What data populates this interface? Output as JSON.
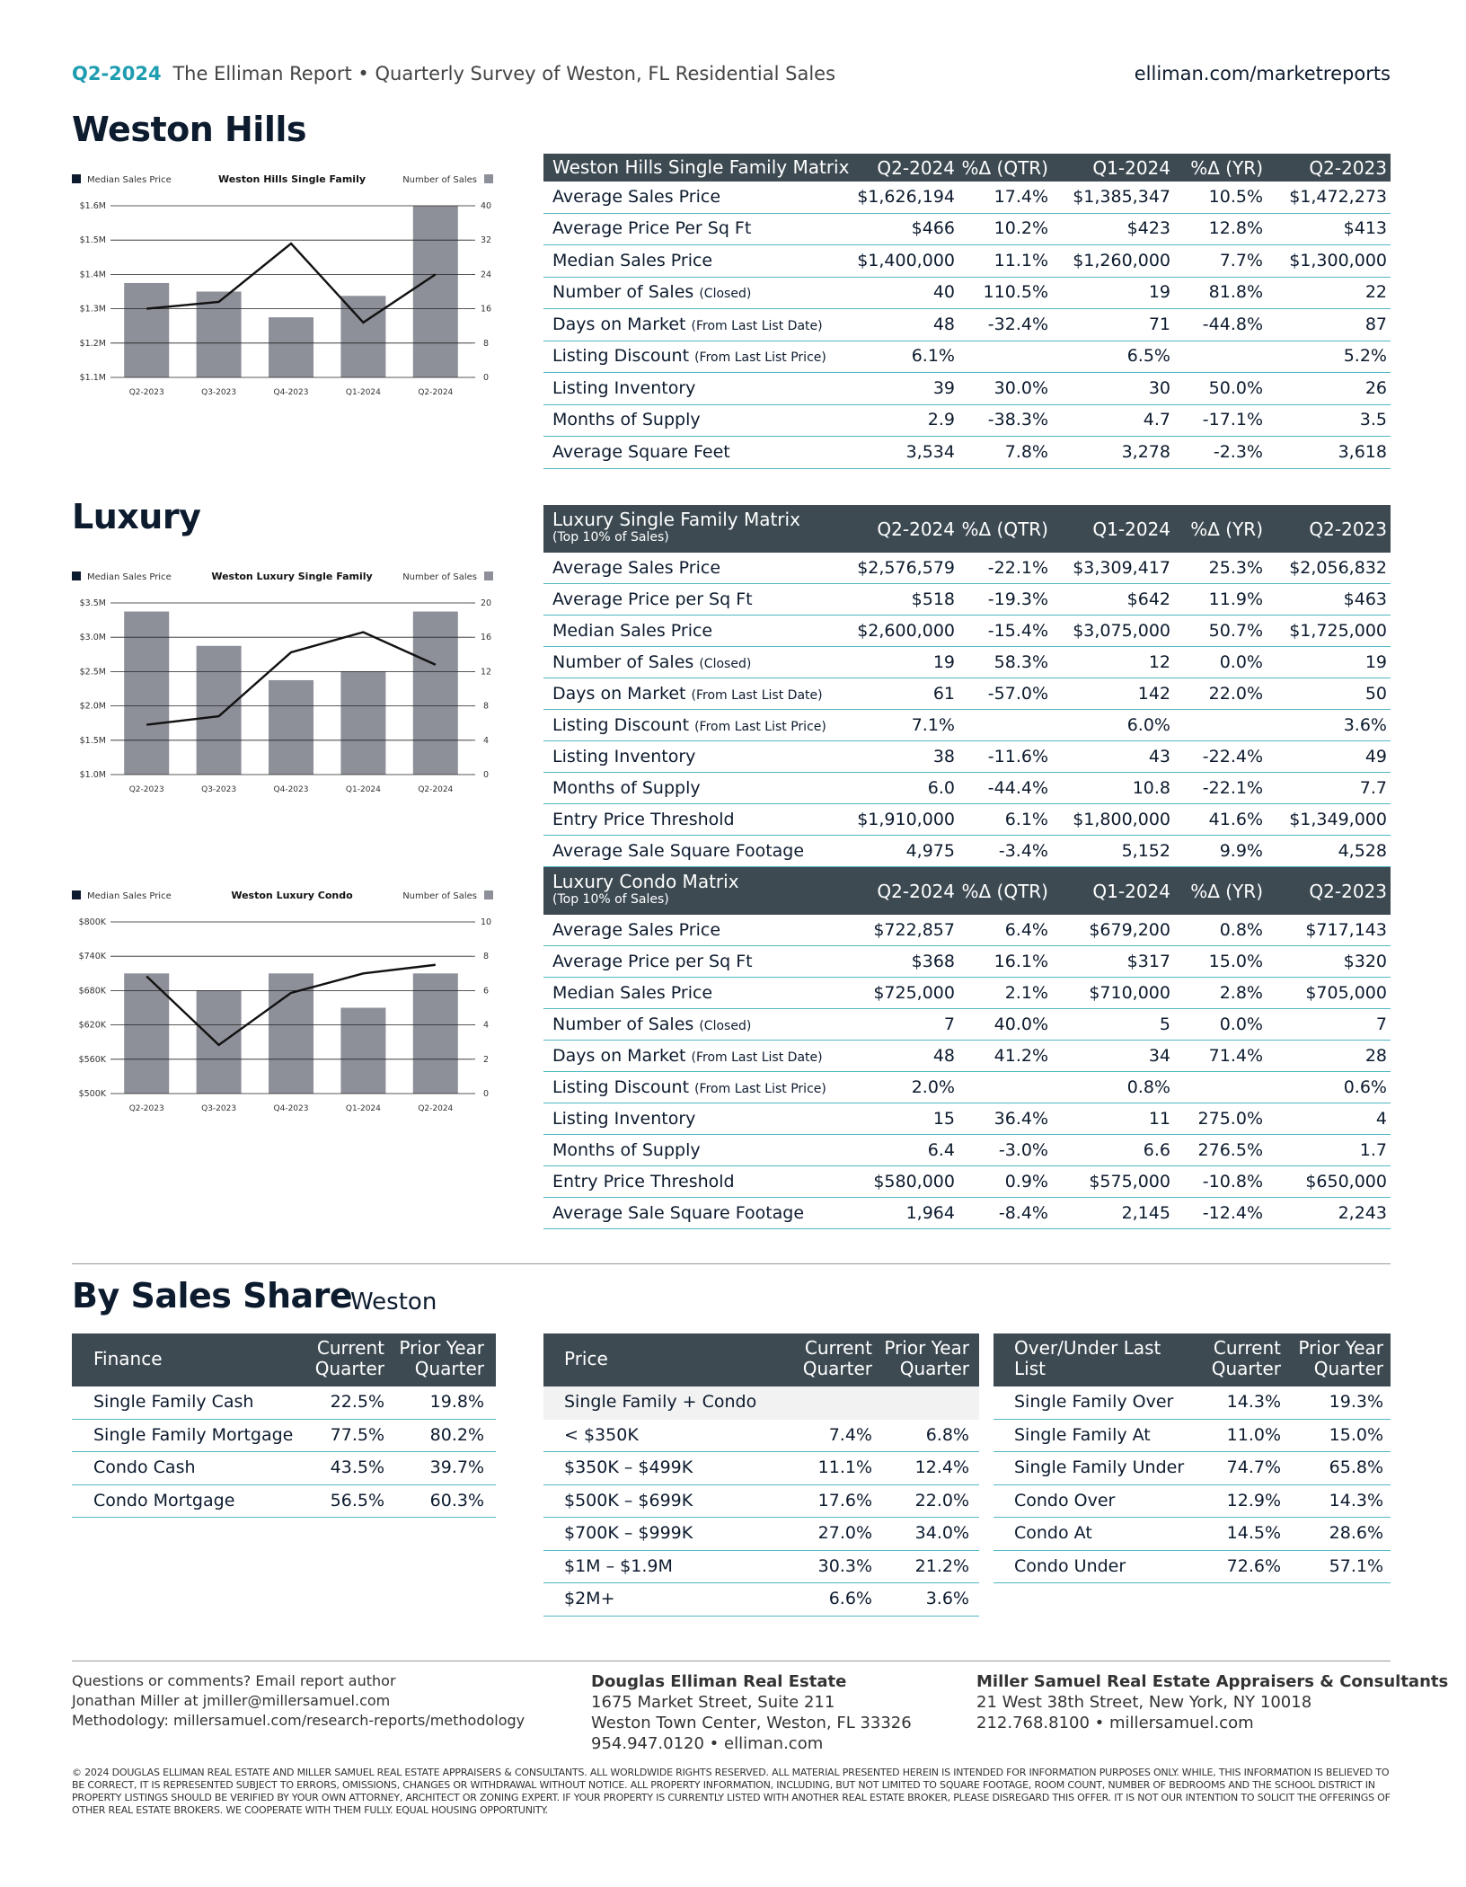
{
  "header": {
    "period": "Q2-2024",
    "title": "The Elliman Report • Quarterly Survey of Weston, FL Residential Sales",
    "url": "elliman.com/marketreports"
  },
  "sections": {
    "weston_hills": "Weston Hills",
    "luxury": "Luxury",
    "share": "By Sales Share",
    "share_sub": "Weston"
  },
  "matrices": [
    {
      "title": "Weston Hills Single Family  Matrix",
      "columns": [
        "Q2-2024",
        "%Δ (QTR)",
        "Q1-2024",
        "%Δ (YR)",
        "Q2-2023"
      ],
      "rows": [
        {
          "label": "Average Sales Price",
          "cells": [
            "$1,626,194",
            "17.4%",
            "$1,385,347",
            "10.5%",
            "$1,472,273"
          ]
        },
        {
          "label": "Average Price Per Sq Ft",
          "cells": [
            "$466",
            "10.2%",
            "$423",
            "12.8%",
            "$413"
          ]
        },
        {
          "label": "Median Sales Price",
          "cells": [
            "$1,400,000",
            "11.1%",
            "$1,260,000",
            "7.7%",
            "$1,300,000"
          ]
        },
        {
          "label": "Number of Sales",
          "note": "(Closed)",
          "cells": [
            "40",
            "110.5%",
            "19",
            "81.8%",
            "22"
          ]
        },
        {
          "label": "Days on Market",
          "note": "(From Last List Date)",
          "cells": [
            "48",
            "-32.4%",
            "71",
            "-44.8%",
            "87"
          ]
        },
        {
          "label": "Listing Discount",
          "note": "(From Last List Price)",
          "cells": [
            "6.1%",
            null,
            "6.5%",
            null,
            "5.2%"
          ]
        },
        {
          "label": "Listing Inventory",
          "cells": [
            "39",
            "30.0%",
            "30",
            "50.0%",
            "26"
          ]
        },
        {
          "label": "Months of Supply",
          "cells": [
            "2.9",
            "-38.3%",
            "4.7",
            "-17.1%",
            "3.5"
          ]
        },
        {
          "label": "Average Square Feet",
          "cells": [
            "3,534",
            "7.8%",
            "3,278",
            "-2.3%",
            "3,618"
          ]
        }
      ]
    },
    {
      "title": "Luxury Single Family Matrix",
      "subtitle": "(Top 10% of Sales)",
      "columns": [
        "Q2-2024",
        "%Δ (QTR)",
        "Q1-2024",
        "%Δ (YR)",
        "Q2-2023"
      ],
      "rows": [
        {
          "label": "Average Sales Price",
          "cells": [
            "$2,576,579",
            "-22.1%",
            "$3,309,417",
            "25.3%",
            "$2,056,832"
          ]
        },
        {
          "label": "Average Price per Sq Ft",
          "cells": [
            "$518",
            "-19.3%",
            "$642",
            "11.9%",
            "$463"
          ]
        },
        {
          "label": "Median Sales Price",
          "cells": [
            "$2,600,000",
            "-15.4%",
            "$3,075,000",
            "50.7%",
            "$1,725,000"
          ]
        },
        {
          "label": "Number of Sales",
          "note": "(Closed)",
          "cells": [
            "19",
            "58.3%",
            "12",
            "0.0%",
            "19"
          ]
        },
        {
          "label": "Days on Market",
          "note": "(From Last List Date)",
          "cells": [
            "61",
            "-57.0%",
            "142",
            "22.0%",
            "50"
          ]
        },
        {
          "label": "Listing Discount",
          "note": "(From Last List Price)",
          "cells": [
            "7.1%",
            null,
            "6.0%",
            null,
            "3.6%"
          ]
        },
        {
          "label": "Listing Inventory",
          "cells": [
            "38",
            "-11.6%",
            "43",
            "-22.4%",
            "49"
          ]
        },
        {
          "label": "Months of Supply",
          "cells": [
            "6.0",
            "-44.4%",
            "10.8",
            "-22.1%",
            "7.7"
          ]
        },
        {
          "label": "Entry Price Threshold",
          "cells": [
            "$1,910,000",
            "6.1%",
            "$1,800,000",
            "41.6%",
            "$1,349,000"
          ]
        },
        {
          "label": "Average Sale Square Footage",
          "cells": [
            "4,975",
            "-3.4%",
            "5,152",
            "9.9%",
            "4,528"
          ]
        }
      ]
    },
    {
      "title": "Luxury Condo Matrix",
      "subtitle": "(Top 10% of Sales)",
      "columns": [
        "Q2-2024",
        "%Δ (QTR)",
        "Q1-2024",
        "%Δ (YR)",
        "Q2-2023"
      ],
      "rows": [
        {
          "label": "Average Sales Price",
          "cells": [
            "$722,857",
            "6.4%",
            "$679,200",
            "0.8%",
            "$717,143"
          ]
        },
        {
          "label": "Average Price per Sq Ft",
          "cells": [
            "$368",
            "16.1%",
            "$317",
            "15.0%",
            "$320"
          ]
        },
        {
          "label": "Median Sales Price",
          "cells": [
            "$725,000",
            "2.1%",
            "$710,000",
            "2.8%",
            "$705,000"
          ]
        },
        {
          "label": "Number of Sales",
          "note": "(Closed)",
          "cells": [
            "7",
            "40.0%",
            "5",
            "0.0%",
            "7"
          ]
        },
        {
          "label": "Days on Market",
          "note": "(From Last List Date)",
          "cells": [
            "48",
            "41.2%",
            "34",
            "71.4%",
            "28"
          ]
        },
        {
          "label": "Listing Discount",
          "note": "(From Last List Price)",
          "cells": [
            "2.0%",
            null,
            "0.8%",
            null,
            "0.6%"
          ]
        },
        {
          "label": "Listing Inventory",
          "cells": [
            "15",
            "36.4%",
            "11",
            "275.0%",
            "4"
          ]
        },
        {
          "label": "Months of Supply",
          "cells": [
            "6.4",
            "-3.0%",
            "6.6",
            "276.5%",
            "1.7"
          ]
        },
        {
          "label": "Entry Price Threshold",
          "cells": [
            "$580,000",
            "0.9%",
            "$575,000",
            "-10.8%",
            "$650,000"
          ]
        },
        {
          "label": "Average Sale Square Footage",
          "cells": [
            "1,964",
            "-8.4%",
            "2,145",
            "-12.4%",
            "2,243"
          ]
        }
      ]
    }
  ],
  "chart_data": [
    {
      "type": "combo",
      "title": "Weston Hills Single Family",
      "categories": [
        "Q2-2023",
        "Q3-2023",
        "Q4-2023",
        "Q1-2024",
        "Q2-2024"
      ],
      "series": [
        {
          "name": "Median Sales Price",
          "type": "line",
          "color": "#111111",
          "values": [
            1300000,
            1320000,
            1490000,
            1260000,
            1400000
          ]
        },
        {
          "name": "Number of Sales",
          "type": "bar",
          "axis": "y2",
          "color": "#8e9099",
          "values": [
            22,
            20,
            14,
            19,
            40
          ]
        }
      ],
      "ylim": [
        1100000,
        1600000
      ],
      "yticks": [
        {
          "value": 1100000,
          "label": "$1.1M"
        },
        {
          "value": 1200000,
          "label": "$1.2M"
        },
        {
          "value": 1300000,
          "label": "$1.3M"
        },
        {
          "value": 1400000,
          "label": "$1.4M"
        },
        {
          "value": 1500000,
          "label": "$1.5M"
        },
        {
          "value": 1600000,
          "label": "$1.6M"
        }
      ],
      "y2lim": [
        0,
        40
      ],
      "y2ticks": [
        0,
        8,
        16,
        24,
        32,
        40
      ],
      "grid": true
    },
    {
      "type": "combo",
      "title": "Weston Luxury Single Family",
      "categories": [
        "Q2-2023",
        "Q3-2023",
        "Q4-2023",
        "Q1-2024",
        "Q2-2024"
      ],
      "series": [
        {
          "name": "Median Sales Price",
          "type": "line",
          "color": "#111111",
          "values": [
            1725000,
            1850000,
            2780000,
            3075000,
            2600000
          ]
        },
        {
          "name": "Number of Sales",
          "type": "bar",
          "axis": "y2",
          "color": "#8e9099",
          "values": [
            19,
            15,
            11,
            12,
            19
          ]
        }
      ],
      "ylim": [
        1000000,
        3500000
      ],
      "yticks": [
        {
          "value": 1000000,
          "label": "$1.0M"
        },
        {
          "value": 1500000,
          "label": "$1.5M"
        },
        {
          "value": 2000000,
          "label": "$2.0M"
        },
        {
          "value": 2500000,
          "label": "$2.5M"
        },
        {
          "value": 3000000,
          "label": "$3.0M"
        },
        {
          "value": 3500000,
          "label": "$3.5M"
        }
      ],
      "y2lim": [
        0,
        20
      ],
      "y2ticks": [
        0,
        4,
        8,
        12,
        16,
        20
      ],
      "grid": true
    },
    {
      "type": "combo",
      "title": "Weston Luxury Condo",
      "categories": [
        "Q2-2023",
        "Q3-2023",
        "Q4-2023",
        "Q1-2024",
        "Q2-2024"
      ],
      "series": [
        {
          "name": "Median Sales Price",
          "type": "line",
          "color": "#111111",
          "values": [
            705000,
            585000,
            676000,
            710000,
            725000
          ]
        },
        {
          "name": "Number of Sales",
          "type": "bar",
          "axis": "y2",
          "color": "#8e9099",
          "values": [
            7,
            6,
            7,
            5,
            7
          ]
        }
      ],
      "ylim": [
        500000,
        800000
      ],
      "yticks": [
        {
          "value": 500000,
          "label": "$500K"
        },
        {
          "value": 560000,
          "label": "$560K"
        },
        {
          "value": 620000,
          "label": "$620K"
        },
        {
          "value": 680000,
          "label": "$680K"
        },
        {
          "value": 740000,
          "label": "$740K"
        },
        {
          "value": 800000,
          "label": "$800K"
        }
      ],
      "y2lim": [
        0,
        10
      ],
      "y2ticks": [
        0,
        2,
        4,
        6,
        8,
        10
      ],
      "grid": true
    }
  ],
  "share_tables": [
    {
      "header": [
        "Finance",
        "Current Quarter",
        "Prior Year Quarter"
      ],
      "rows": [
        [
          "Single Family Cash",
          "22.5%",
          "19.8%"
        ],
        [
          "Single Family Mortgage",
          "77.5%",
          "80.2%"
        ],
        [
          "Condo Cash",
          "43.5%",
          "39.7%"
        ],
        [
          "Condo Mortgage",
          "56.5%",
          "60.3%"
        ]
      ]
    },
    {
      "header": [
        "Price",
        "Current Quarter",
        "Prior Year Quarter"
      ],
      "group": "Single Family + Condo",
      "rows": [
        [
          "< $350K",
          "7.4%",
          "6.8%"
        ],
        [
          "$350K – $499K",
          "11.1%",
          "12.4%"
        ],
        [
          "$500K – $699K",
          "17.6%",
          "22.0%"
        ],
        [
          "$700K – $999K",
          "27.0%",
          "34.0%"
        ],
        [
          "$1M – $1.9M",
          "30.3%",
          "21.2%"
        ],
        [
          "$2M+",
          "6.6%",
          "3.6%"
        ]
      ]
    },
    {
      "header": [
        "Over/Under Last List",
        "Current Quarter",
        "Prior Year Quarter"
      ],
      "rows": [
        [
          "Single Family Over",
          "14.3%",
          "19.3%"
        ],
        [
          "Single Family At",
          "11.0%",
          "15.0%"
        ],
        [
          "Single Family Under",
          "74.7%",
          "65.8%"
        ],
        [
          "Condo Over",
          "12.9%",
          "14.3%"
        ],
        [
          "Condo At",
          "14.5%",
          "28.6%"
        ],
        [
          "Condo Under",
          "72.6%",
          "57.1%"
        ]
      ]
    }
  ],
  "footer": {
    "left": [
      "Questions or comments? Email report author",
      "Jonathan Miller at jmiller@millersamuel.com",
      "Methodology: millersamuel.com/research-reports/methodology"
    ],
    "center_name": "Douglas Elliman Real Estate",
    "center": [
      "1675 Market Street, Suite 211",
      "Weston Town Center, Weston, FL 33326",
      "954.947.0120 • elliman.com"
    ],
    "right_name": "Miller Samuel Real Estate Appraisers & Consultants",
    "right": [
      "21 West 38th Street, New York, NY 10018",
      "212.768.8100 • millersamuel.com"
    ],
    "disclaimer": "© 2024 DOUGLAS ELLIMAN REAL ESTATE AND MILLER SAMUEL REAL ESTATE APPRAISERS & CONSULTANTS. ALL WORLDWIDE RIGHTS RESERVED. ALL MATERIAL PRESENTED HEREIN IS INTENDED FOR INFORMATION PURPOSES ONLY. WHILE, THIS INFORMATION IS BELIEVED TO BE CORRECT, IT IS REPRESENTED SUBJECT TO ERRORS, OMISSIONS, CHANGES OR WITHDRAWAL WITHOUT NOTICE. ALL PROPERTY INFORMATION, INCLUDING, BUT NOT LIMITED TO SQUARE FOOTAGE, ROOM COUNT, NUMBER OF BEDROOMS AND THE SCHOOL DISTRICT IN PROPERTY LISTINGS SHOULD BE VERIFIED BY YOUR OWN ATTORNEY, ARCHITECT OR ZONING EXPERT. IF YOUR PROPERTY IS CURRENTLY LISTED WITH ANOTHER REAL ESTATE BROKER, PLEASE DISREGARD THIS OFFER. IT IS NOT OUR INTENTION TO SOLICIT THE OFFERINGS OF OTHER REAL ESTATE BROKERS. WE COOPERATE WITH THEM FULLY. EQUAL HOUSING OPPORTUNITY."
  }
}
